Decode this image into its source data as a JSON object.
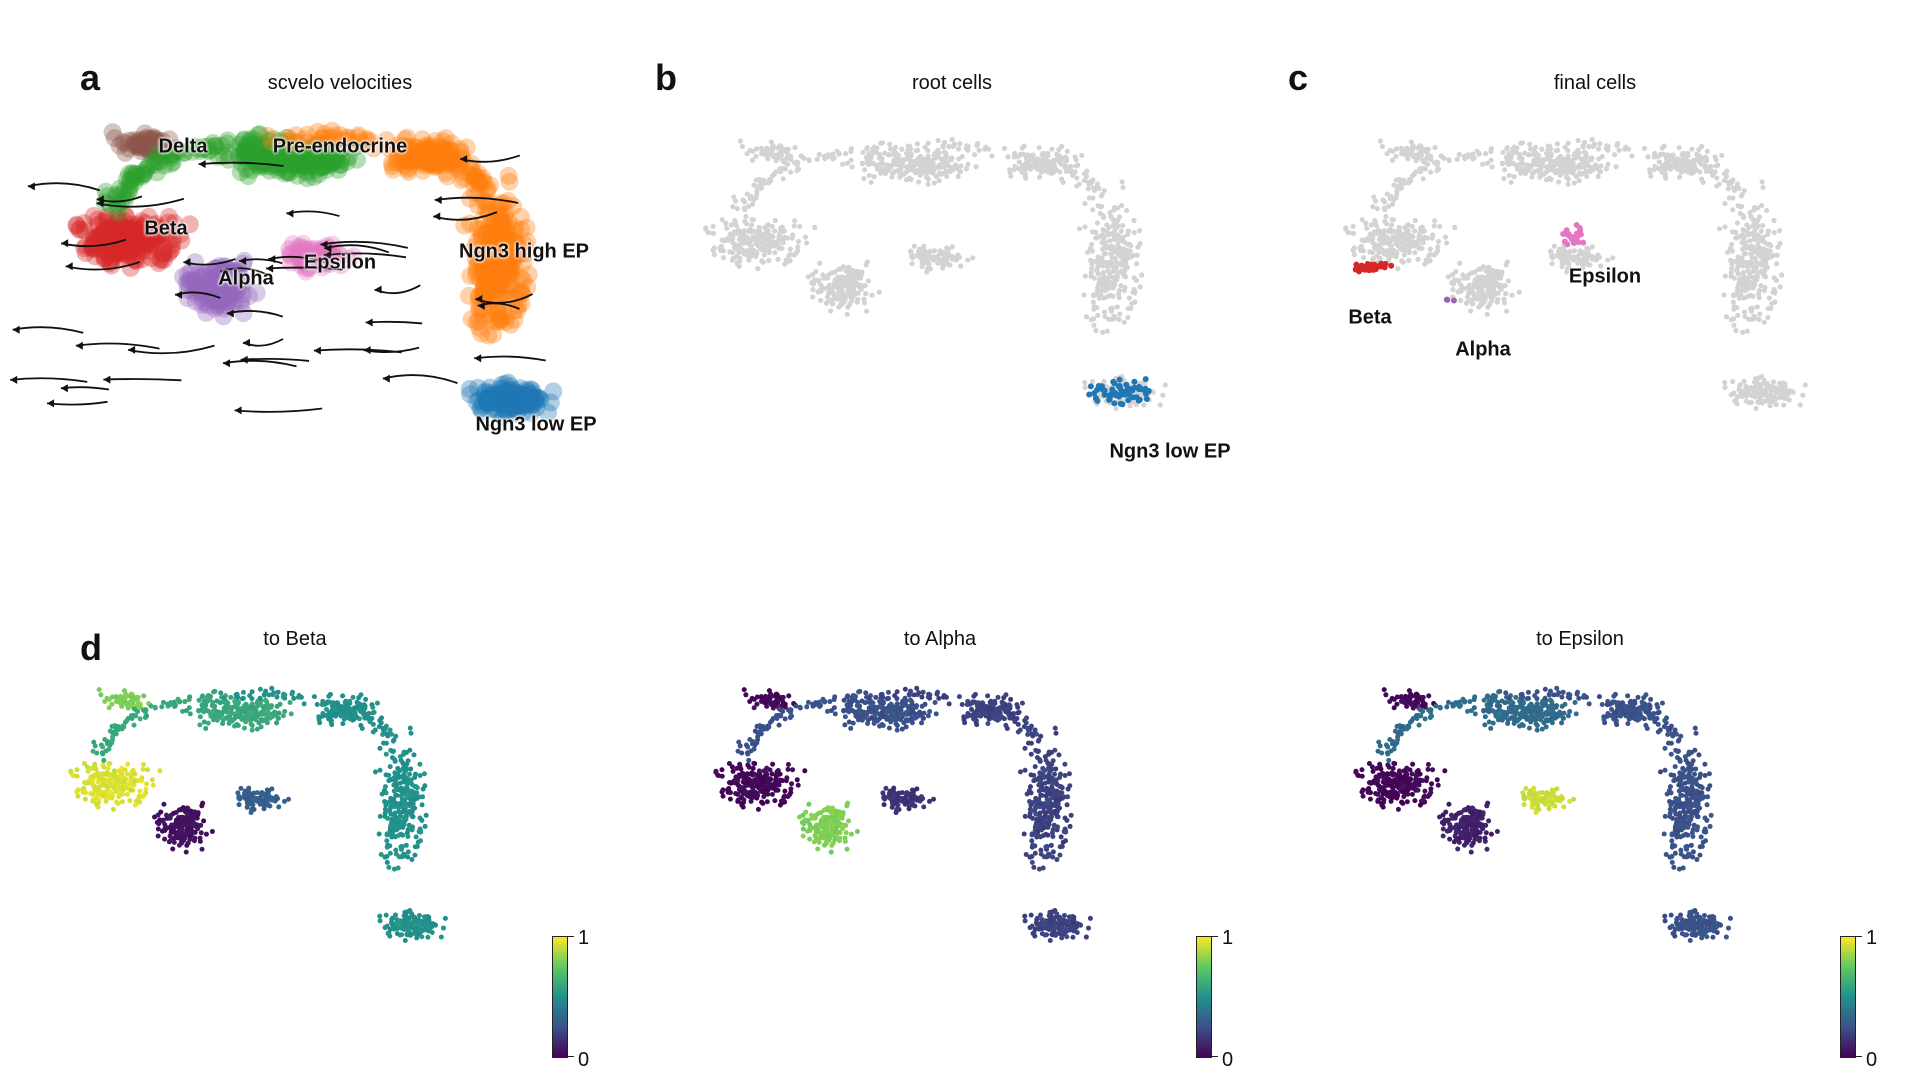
{
  "panel_a": {
    "letter": "a",
    "title": "scvelo velocities",
    "labels": [
      "Delta",
      "Pre-endocrine",
      "Beta",
      "Epsilon",
      "Alpha",
      "Ngn3 high EP",
      "Ngn3 low EP"
    ]
  },
  "panel_b": {
    "letter": "b",
    "title": "root cells",
    "labels": [
      "Ngn3 low EP"
    ]
  },
  "panel_c": {
    "letter": "c",
    "title": "final cells",
    "labels": [
      "Epsilon",
      "Beta",
      "Alpha"
    ]
  },
  "panel_d": {
    "letter": "d",
    "titles": [
      "to Beta",
      "to Alpha",
      "to Epsilon"
    ],
    "colorbar": {
      "min_label": "0",
      "max_label": "1",
      "colormap": "viridis"
    }
  },
  "colors": {
    "Delta": "#8c564b",
    "Pre-endocrine": "#2ca02c",
    "Beta": "#d62728",
    "Epsilon": "#e377c2",
    "Alpha": "#9467bd",
    "Ngn3 high EP": "#ff7f0e",
    "Ngn3 low EP": "#1f77b4",
    "background_cells": "#d3d3d3"
  }
}
